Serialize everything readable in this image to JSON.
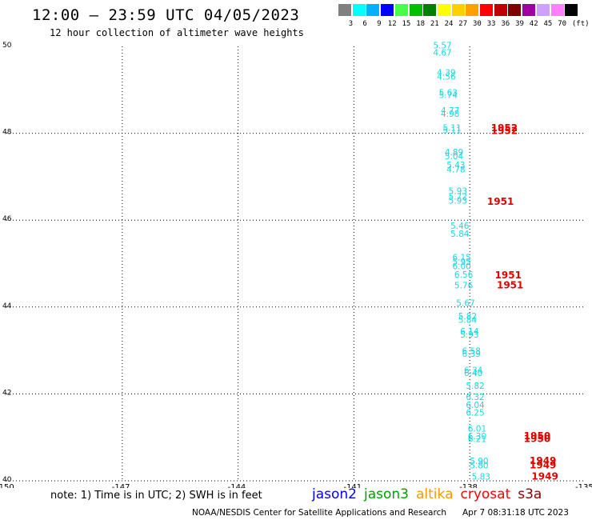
{
  "header": {
    "title": "12:00 — 23:59 UTC 04/05/2023",
    "subtitle": "12 hour collection of altimeter wave heights"
  },
  "scale": {
    "colors": [
      "#808080",
      "#00ffff",
      "#00b0ff",
      "#0000ff",
      "#48ff48",
      "#00c000",
      "#008000",
      "#ffff00",
      "#ffd000",
      "#ffa000",
      "#ff0000",
      "#c00000",
      "#800000",
      "#a000a0",
      "#d0a0ff",
      "#ff80ff",
      "#000000"
    ],
    "labels": [
      "3",
      "6",
      "9",
      "12",
      "15",
      "18",
      "21",
      "24",
      "27",
      "30",
      "33",
      "36",
      "39",
      "42",
      "45",
      "70",
      "(ft)"
    ]
  },
  "map": {
    "lon_range": [
      -150,
      -135
    ],
    "lat_range": [
      40,
      50
    ],
    "x_ticks": [
      "-150",
      "-147",
      "-144",
      "-141",
      "-138",
      "-135"
    ],
    "y_ticks": [
      "50",
      "48",
      "46",
      "44",
      "42",
      "40"
    ],
    "measurements": [
      {
        "lon": -138.95,
        "lat": 49.95,
        "text": "5.57",
        "sat": "jason3"
      },
      {
        "lon": -138.95,
        "lat": 49.79,
        "text": "4.67",
        "sat": "jason3"
      },
      {
        "lon": -138.85,
        "lat": 49.33,
        "text": "4.39",
        "sat": "jason3"
      },
      {
        "lon": -138.85,
        "lat": 49.24,
        "text": "4.56",
        "sat": "jason3"
      },
      {
        "lon": -138.8,
        "lat": 48.87,
        "text": "5.63",
        "sat": "jason3"
      },
      {
        "lon": -138.8,
        "lat": 48.81,
        "text": "5.74",
        "sat": "jason3"
      },
      {
        "lon": -138.75,
        "lat": 48.45,
        "text": "4.77",
        "sat": "jason3"
      },
      {
        "lon": -138.75,
        "lat": 48.38,
        "text": "4.98",
        "sat": "jason3"
      },
      {
        "lon": -138.7,
        "lat": 48.06,
        "text": "5.11",
        "sat": "jason3"
      },
      {
        "lon": -138.7,
        "lat": 48.0,
        "text": "5.11",
        "sat": "jason3"
      },
      {
        "lon": -137.45,
        "lat": 48.05,
        "text": "1952",
        "sat": "cryosat"
      },
      {
        "lon": -137.45,
        "lat": 47.98,
        "text": "1952",
        "sat": "cryosat"
      },
      {
        "lon": -138.65,
        "lat": 47.5,
        "text": "4.89",
        "sat": "jason3"
      },
      {
        "lon": -138.65,
        "lat": 47.4,
        "text": "5.04",
        "sat": "jason3"
      },
      {
        "lon": -138.6,
        "lat": 47.2,
        "text": "5.43",
        "sat": "jason3"
      },
      {
        "lon": -138.6,
        "lat": 47.1,
        "text": "4.78",
        "sat": "jason3"
      },
      {
        "lon": -138.55,
        "lat": 46.6,
        "text": "5.93",
        "sat": "jason3"
      },
      {
        "lon": -138.55,
        "lat": 46.47,
        "text": "5.72",
        "sat": "jason3"
      },
      {
        "lon": -138.55,
        "lat": 46.38,
        "text": "5.93",
        "sat": "jason3"
      },
      {
        "lon": -137.55,
        "lat": 46.35,
        "text": "1951",
        "sat": "cryosat"
      },
      {
        "lon": -138.5,
        "lat": 45.8,
        "text": "5.46",
        "sat": "jason3"
      },
      {
        "lon": -138.5,
        "lat": 45.62,
        "text": "5.84",
        "sat": "jason3"
      },
      {
        "lon": -138.45,
        "lat": 45.07,
        "text": "6.15",
        "sat": "jason3"
      },
      {
        "lon": -138.45,
        "lat": 44.97,
        "text": "5.95",
        "sat": "jason3"
      },
      {
        "lon": -138.45,
        "lat": 44.87,
        "text": "6.00",
        "sat": "jason3"
      },
      {
        "lon": -138.4,
        "lat": 44.68,
        "text": "6.56",
        "sat": "jason3"
      },
      {
        "lon": -137.35,
        "lat": 44.66,
        "text": "1951",
        "sat": "cryosat"
      },
      {
        "lon": -138.4,
        "lat": 44.43,
        "text": "5.76",
        "sat": "jason3"
      },
      {
        "lon": -137.3,
        "lat": 44.43,
        "text": "1951",
        "sat": "cryosat"
      },
      {
        "lon": -138.35,
        "lat": 44.02,
        "text": "5.67",
        "sat": "jason3"
      },
      {
        "lon": -138.3,
        "lat": 43.72,
        "text": "5.82",
        "sat": "jason3"
      },
      {
        "lon": -138.3,
        "lat": 43.64,
        "text": "5.84",
        "sat": "jason3"
      },
      {
        "lon": -138.25,
        "lat": 43.37,
        "text": "6.14",
        "sat": "jason3"
      },
      {
        "lon": -138.25,
        "lat": 43.3,
        "text": "5.93",
        "sat": "jason3"
      },
      {
        "lon": -138.2,
        "lat": 42.92,
        "text": "6.58",
        "sat": "jason3"
      },
      {
        "lon": -138.2,
        "lat": 42.85,
        "text": "6.39",
        "sat": "jason3"
      },
      {
        "lon": -138.15,
        "lat": 42.48,
        "text": "6.34",
        "sat": "jason2"
      },
      {
        "lon": -138.15,
        "lat": 42.41,
        "text": "6.40",
        "sat": "jason2"
      },
      {
        "lon": -138.1,
        "lat": 42.12,
        "text": "5.82",
        "sat": "jason3"
      },
      {
        "lon": -138.1,
        "lat": 41.86,
        "text": "6.32",
        "sat": "jason2"
      },
      {
        "lon": -138.1,
        "lat": 41.68,
        "text": "6.04",
        "sat": "jason2"
      },
      {
        "lon": -138.1,
        "lat": 41.5,
        "text": "6.25",
        "sat": "jason2"
      },
      {
        "lon": -138.05,
        "lat": 41.13,
        "text": "6.01",
        "sat": "jason2"
      },
      {
        "lon": -138.05,
        "lat": 40.96,
        "text": "6.30",
        "sat": "jason2"
      },
      {
        "lon": -138.05,
        "lat": 40.89,
        "text": "6.21",
        "sat": "jason2"
      },
      {
        "lon": -136.6,
        "lat": 40.96,
        "text": "1950",
        "sat": "cryosat"
      },
      {
        "lon": -136.6,
        "lat": 40.89,
        "text": "1950",
        "sat": "cryosat"
      },
      {
        "lon": -138.0,
        "lat": 40.39,
        "text": "5.90",
        "sat": "jason2"
      },
      {
        "lon": -138.0,
        "lat": 40.29,
        "text": "5.80",
        "sat": "jason2"
      },
      {
        "lon": -136.45,
        "lat": 40.39,
        "text": "1949",
        "sat": "cryosat"
      },
      {
        "lon": -136.45,
        "lat": 40.29,
        "text": "1949",
        "sat": "cryosat"
      },
      {
        "lon": -137.95,
        "lat": 40.03,
        "text": "5.83",
        "sat": "jason2"
      },
      {
        "lon": -136.4,
        "lat": 40.03,
        "text": "1949",
        "sat": "cryosat"
      }
    ]
  },
  "note": "note: 1) Time is in UTC; 2) SWH is in feet",
  "legend": [
    {
      "name": "jason2",
      "color": "#0000ff"
    },
    {
      "name": "jason3",
      "color": "#00a000"
    },
    {
      "name": "altika",
      "color": "#ff9900"
    },
    {
      "name": "cryosat",
      "color": "#ff0000"
    },
    {
      "name": "s3a",
      "color": "#8b0000"
    }
  ],
  "footer": {
    "credit": "NOAA/NESDIS Center for Satellite Applications and Research",
    "timestamp": "Apr  7 08:31:18 UTC 2023"
  }
}
